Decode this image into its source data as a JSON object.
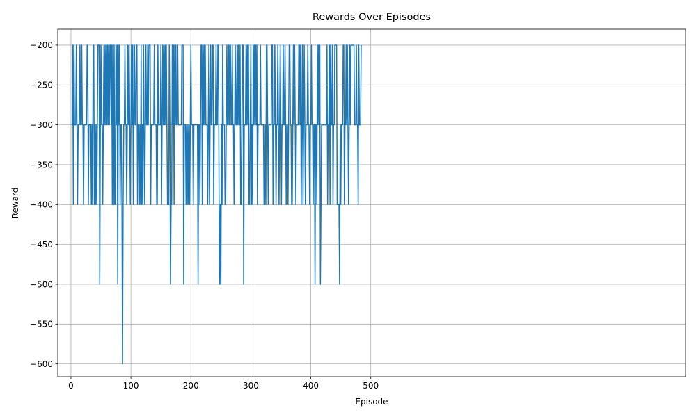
{
  "chart_data": {
    "type": "line",
    "title": "Rewards Over Episodes",
    "xlabel": "Episode",
    "ylabel": "Reward",
    "xlim": [
      -22,
      1025
    ],
    "ylim": [
      -616,
      -180
    ],
    "xticks": [
      0,
      100,
      200,
      300,
      400,
      500
    ],
    "yticks": [
      -600,
      -550,
      -500,
      -450,
      -400,
      -350,
      -300,
      -250,
      -200
    ],
    "xtick_labels": [
      "0",
      "100",
      "200",
      "300",
      "400",
      "500"
    ],
    "ytick_labels": [
      "−600",
      "−550",
      "−500",
      "−450",
      "−400",
      "−350",
      "−300",
      "−250",
      "−200"
    ],
    "grid": true,
    "line_color": "#1f77b4",
    "series": [
      {
        "values": [
          -300,
          -300,
          -200,
          -400,
          -200,
          -300,
          -300,
          -300,
          -200,
          -300,
          -400,
          -300,
          -300,
          -300,
          -200,
          -300,
          -300,
          -200,
          -300,
          -300,
          -400,
          -300,
          -300,
          -300,
          -300,
          -300,
          -200,
          -200,
          -400,
          -300,
          -300,
          -300,
          -300,
          -400,
          -300,
          -400,
          -200,
          -200,
          -400,
          -300,
          -400,
          -300,
          -400,
          -300,
          -200,
          -200,
          -200,
          -500,
          -300,
          -200,
          -300,
          -300,
          -400,
          -300,
          -200,
          -300,
          -200,
          -300,
          -200,
          -300,
          -200,
          -300,
          -200,
          -300,
          -200,
          -200,
          -300,
          -200,
          -400,
          -200,
          -400,
          -200,
          -400,
          -400,
          -200,
          -300,
          -200,
          -500,
          -200,
          -300,
          -200,
          -400,
          -300,
          -300,
          -400,
          -600,
          -400,
          -300,
          -300,
          -200,
          -300,
          -300,
          -400,
          -300,
          -200,
          -300,
          -200,
          -300,
          -400,
          -300,
          -200,
          -300,
          -200,
          -400,
          -300,
          -200,
          -300,
          -300,
          -200,
          -200,
          -400,
          -300,
          -300,
          -400,
          -300,
          -400,
          -200,
          -400,
          -300,
          -400,
          -200,
          -300,
          -400,
          -300,
          -200,
          -300,
          -300,
          -200,
          -300,
          -200,
          -200,
          -200,
          -400,
          -300,
          -300,
          -300,
          -300,
          -300,
          -200,
          -300,
          -300,
          -300,
          -400,
          -400,
          -200,
          -300,
          -300,
          -300,
          -300,
          -200,
          -400,
          -300,
          -200,
          -300,
          -200,
          -300,
          -200,
          -300,
          -200,
          -300,
          -400,
          -400,
          -400,
          -200,
          -300,
          -500,
          -400,
          -400,
          -200,
          -300,
          -200,
          -400,
          -200,
          -300,
          -200,
          -300,
          -300,
          -200,
          -300,
          -300,
          -300,
          -300,
          -300,
          -300,
          -200,
          -200,
          -200,
          -500,
          -300,
          -300,
          -300,
          -400,
          -300,
          -400,
          -300,
          -400,
          -300,
          -400,
          -300,
          -200,
          -300,
          -300,
          -300,
          -400,
          -300,
          -300,
          -300,
          -300,
          -300,
          -300,
          -300,
          -500,
          -300,
          -300,
          -400,
          -300,
          -200,
          -200,
          -400,
          -200,
          -300,
          -200,
          -300,
          -200,
          -300,
          -300,
          -300,
          -400,
          -300,
          -200,
          -400,
          -300,
          -200,
          -300,
          -300,
          -200,
          -200,
          -400,
          -300,
          -300,
          -300,
          -200,
          -300,
          -300,
          -200,
          -200,
          -400,
          -500,
          -400,
          -500,
          -300,
          -400,
          -200,
          -300,
          -300,
          -300,
          -400,
          -400,
          -300,
          -200,
          -300,
          -300,
          -200,
          -300,
          -200,
          -200,
          -300,
          -300,
          -200,
          -300,
          -300,
          -400,
          -300,
          -200,
          -300,
          -300,
          -200,
          -300,
          -200,
          -300,
          -300,
          -200,
          -400,
          -400,
          -300,
          -200,
          -200,
          -500,
          -300,
          -300,
          -300,
          -200,
          -300,
          -200,
          -300,
          -200,
          -400,
          -400,
          -300,
          -200,
          -400,
          -300,
          -400,
          -200,
          -300,
          -200,
          -300,
          -200,
          -300,
          -200,
          -400,
          -300,
          -300,
          -300,
          -300,
          -200,
          -300,
          -300,
          -300,
          -300,
          -300,
          -400,
          -400,
          -300,
          -400,
          -200,
          -200,
          -300,
          -400,
          -300,
          -300,
          -300,
          -300,
          -300,
          -200,
          -200,
          -400,
          -300,
          -300,
          -200,
          -300,
          -400,
          -300,
          -300,
          -200,
          -300,
          -400,
          -300,
          -200,
          -300,
          -400,
          -300,
          -300,
          -200,
          -300,
          -300,
          -200,
          -300,
          -400,
          -300,
          -300,
          -400,
          -300,
          -200,
          -200,
          -300,
          -300,
          -400,
          -400,
          -300,
          -200,
          -300,
          -200,
          -300,
          -400,
          -300,
          -300,
          -300,
          -300,
          -200,
          -200,
          -300,
          -200,
          -400,
          -300,
          -200,
          -400,
          -300,
          -200,
          -300,
          -400,
          -300,
          -300,
          -300,
          -200,
          -300,
          -300,
          -400,
          -300,
          -300,
          -200,
          -300,
          -300,
          -400,
          -300,
          -300,
          -500,
          -300,
          -300,
          -400,
          -200,
          -300,
          -200,
          -300,
          -200,
          -500,
          -400,
          -300,
          -300,
          -300,
          -300,
          -300,
          -300,
          -300,
          -300,
          -300,
          -200,
          -400,
          -300,
          -300,
          -200,
          -400,
          -200,
          -300,
          -300,
          -200,
          -400,
          -300,
          -300,
          -200,
          -200,
          -200,
          -200,
          -400,
          -400,
          -400,
          -400,
          -500,
          -300,
          -400,
          -300,
          -300,
          -300,
          -200,
          -200,
          -400,
          -300,
          -300,
          -200,
          -300,
          -200,
          -300,
          -400,
          -300,
          -200,
          -300,
          -200,
          -200,
          -200,
          -200,
          -200,
          -200,
          -300,
          -300,
          -300,
          -200,
          -300,
          -300,
          -400,
          -200,
          -300,
          -300,
          -300,
          -200
        ]
      }
    ]
  }
}
